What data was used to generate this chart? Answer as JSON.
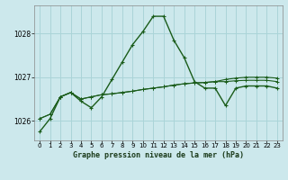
{
  "title": "Graphe pression niveau de la mer (hPa)",
  "background_color": "#cce8ec",
  "grid_color": "#aad4d8",
  "line_color": "#1a5c1a",
  "xlim": [
    -0.5,
    23.5
  ],
  "ylim": [
    1025.55,
    1028.65
  ],
  "yticks": [
    1026,
    1027,
    1028
  ],
  "xticks": [
    0,
    1,
    2,
    3,
    4,
    5,
    6,
    7,
    8,
    9,
    10,
    11,
    12,
    13,
    14,
    15,
    16,
    17,
    18,
    19,
    20,
    21,
    22,
    23
  ],
  "series1": [
    1025.75,
    1026.05,
    1026.55,
    1026.65,
    1026.45,
    1026.3,
    1026.55,
    1026.95,
    1027.35,
    1027.75,
    1028.05,
    1028.4,
    1028.4,
    1027.85,
    1027.45,
    1026.9,
    1026.75,
    1026.75,
    1026.35,
    1026.75,
    1026.8,
    1026.8,
    1026.8,
    1026.75
  ],
  "series2": [
    1026.05,
    1026.15,
    1026.55,
    1026.65,
    1026.5,
    1026.55,
    1026.6,
    1026.62,
    1026.65,
    1026.68,
    1026.72,
    1026.75,
    1026.78,
    1026.82,
    1026.85,
    1026.87,
    1026.88,
    1026.9,
    1026.9,
    1026.92,
    1026.93,
    1026.93,
    1026.93,
    1026.9
  ],
  "series3": [
    1026.05,
    1026.15,
    1026.55,
    1026.65,
    1026.5,
    1026.55,
    1026.6,
    1026.62,
    1026.65,
    1026.68,
    1026.72,
    1026.75,
    1026.78,
    1026.82,
    1026.85,
    1026.87,
    1026.88,
    1026.9,
    1026.95,
    1026.98,
    1027.0,
    1027.0,
    1027.0,
    1026.98
  ]
}
